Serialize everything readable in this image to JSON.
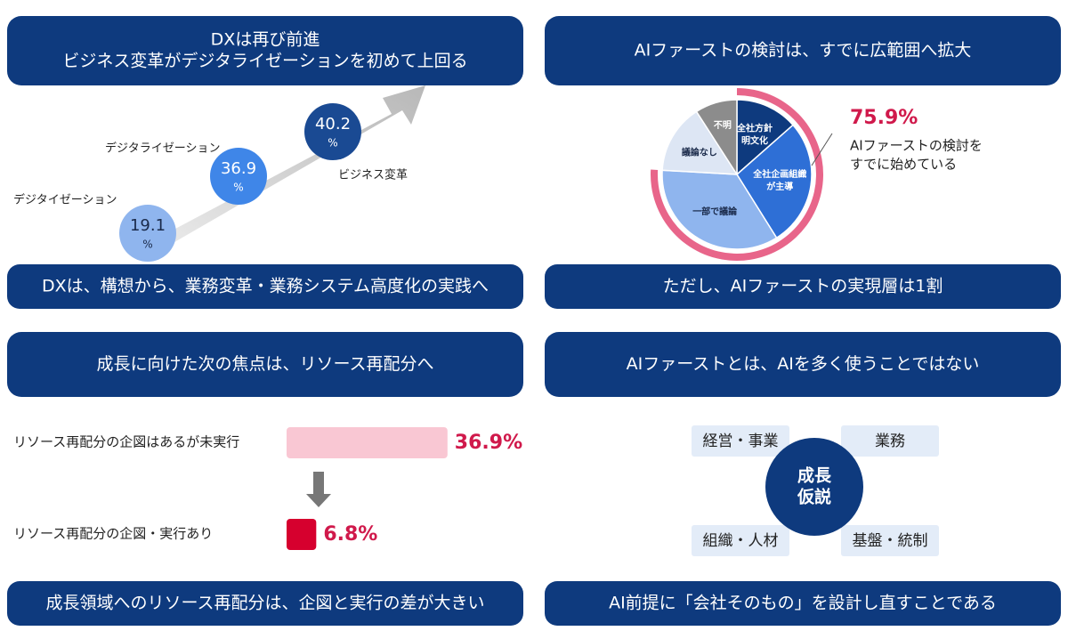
{
  "panels": [
    {
      "header": [
        "DXは再び前進",
        "ビジネス変革がデジタライゼーションを初めて上回る"
      ],
      "steps": [
        {
          "label": "デジタイゼーション",
          "value": 19.1,
          "color": "#8fb5ee"
        },
        {
          "label": "デジタライゼーション",
          "value": 36.9,
          "color": "#3f86e8"
        },
        {
          "label": "ビジネス変革",
          "value": 40.2,
          "color": "#1a4a93"
        }
      ],
      "unit": "%",
      "footer": "DXは、構想から、業務変革・業務システム高度化の実践へ"
    },
    {
      "header": [
        "AIファーストの検討は、すでに広範囲へ拡大"
      ],
      "pie": {
        "slices": [
          {
            "label_lines": [
              "全社方針",
              "明文化"
            ],
            "value": 13.5,
            "color": "#0e3a7e"
          },
          {
            "label_lines": [
              "全社企画組織",
              "が主導"
            ],
            "value": 27.6,
            "color": "#2e6fd6"
          },
          {
            "label_lines": [
              "一部で議論"
            ],
            "value": 34.8,
            "color": "#8fb5ee"
          },
          {
            "label_lines": [
              "議論なし"
            ],
            "value": 15.0,
            "color": "#dde6f4"
          },
          {
            "label_lines": [
              "不明"
            ],
            "value": 9.1,
            "color": "#8c8c8c"
          }
        ],
        "highlight": {
          "value": 75.9,
          "value_label": "75.9%",
          "color": "#e8658a",
          "text_lines": [
            "AIファーストの検討を",
            "すでに始めている"
          ]
        }
      },
      "footer": "ただし、AIファーストの実現層は1割"
    },
    {
      "header": [
        "成長に向けた次の焦点は、リソース再配分へ"
      ],
      "bars": [
        {
          "label": "リソース再配分の企図はあるが未実行",
          "value": 36.9,
          "value_label": "36.9%",
          "color": "#f9c7d3"
        },
        {
          "label": "リソース再配分の企図・実行あり",
          "value": 6.8,
          "value_label": "6.8%",
          "color": "#d6002e"
        }
      ],
      "footer": "成長領域へのリソース再配分は、企図と実行の差が大きい"
    },
    {
      "header": [
        "AIファーストとは、AIを多く使うことではない"
      ],
      "center_lines": [
        "成長",
        "仮説"
      ],
      "boxes": [
        "経営・事業",
        "業務",
        "組織・人材",
        "基盤・統制"
      ],
      "footer": "AI前提に「会社そのもの」を設計し直すことである"
    }
  ]
}
